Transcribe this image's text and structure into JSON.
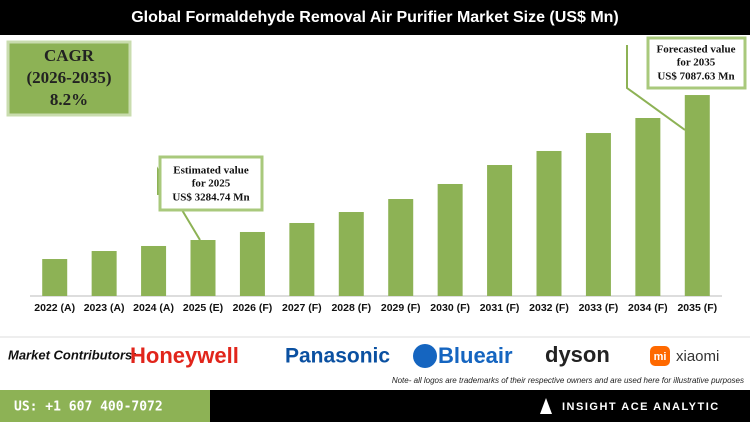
{
  "chart_data": {
    "type": "bar",
    "title": "Global Formaldehyde Removal Air Purifier Market Size (US$ Mn)",
    "categories": [
      "2022 (A)",
      "2023 (A)",
      "2024 (A)",
      "2025 (E)",
      "2026 (F)",
      "2027 (F)",
      "2028 (F)",
      "2029 (F)",
      "2030 (F)",
      "2031 (F)",
      "2032 (F)",
      "2033 (F)",
      "2034 (F)",
      "2035 (F)"
    ],
    "values": [
      2786,
      2996,
      3128,
      3284.74,
      3495,
      3731,
      4019,
      4360,
      4754,
      5252,
      5620,
      6091,
      6485,
      7087.63
    ],
    "color": "#8db255",
    "ylim": [
      1816,
      8531
    ],
    "cagr": {
      "label": "CAGR",
      "period": "(2026-2035)",
      "value": "8.2%"
    },
    "annotations": [
      {
        "lines": [
          "Estimated value",
          "for 2025",
          "US$ 3284.74 Mn"
        ]
      },
      {
        "lines": [
          "Forecasted value",
          "for 2035",
          "US$ 7087.63 Mn"
        ]
      }
    ]
  },
  "contributors": {
    "label": "Market Contributors:",
    "logos": [
      "Honeywell",
      "Panasonic",
      "Blueair",
      "dyson",
      "xiaomi"
    ],
    "logo_mark": "mi"
  },
  "note": "Note- all logos are trademarks of their respective owners and are used here for illustrative purposes",
  "footer": {
    "phone": "US: +1 607 400-7072",
    "brand": "INSIGHT ACE ANALYTIC"
  }
}
